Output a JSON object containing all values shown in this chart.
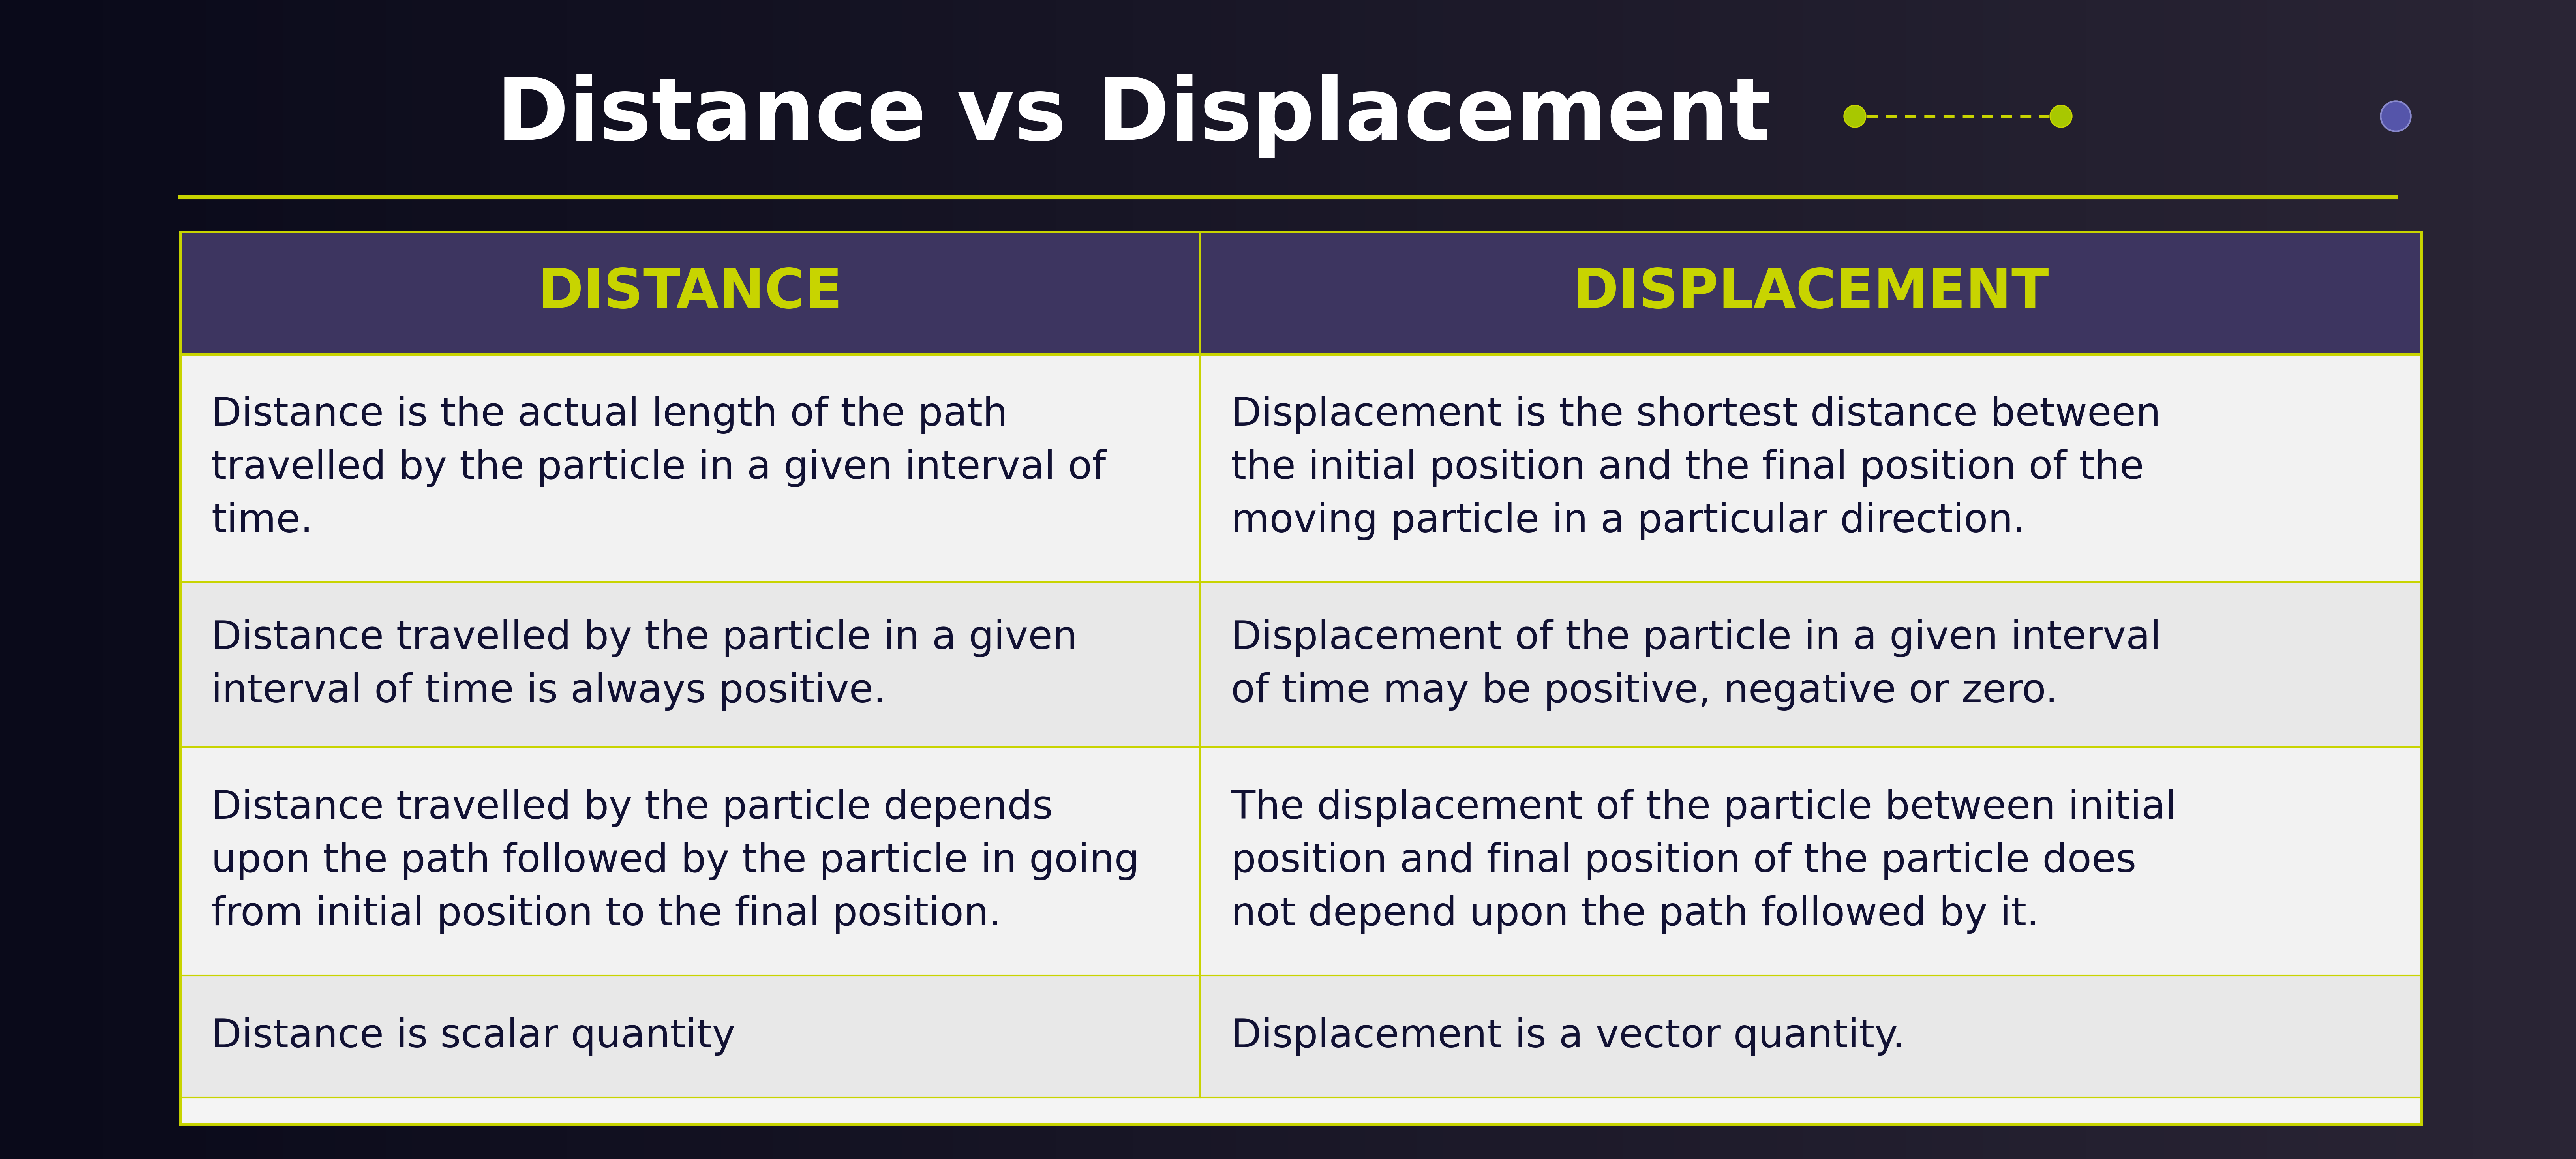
{
  "title": "Distance vs Displacement",
  "bg_color_left": "#0a0a1a",
  "bg_color_right": "#2a2535",
  "header_bg": "#3d3560",
  "cell_bg_odd": "#f2f2f2",
  "cell_bg_even": "#e8e8e8",
  "header_text_color": "#c8d400",
  "title_color": "#ffffff",
  "cell_text_color": "#111133",
  "border_color": "#c8d400",
  "line_color": "#c8d400",
  "col1_header": "DISTANCE",
  "col2_header": "DISPLACEMENT",
  "rows": [
    [
      "Distance is the actual length of the path\ntravelled by the particle in a given interval of\ntime.",
      "Displacement is the shortest distance between\nthe initial position and the final position of the\nmoving particle in a particular direction."
    ],
    [
      "Distance travelled by the particle in a given\ninterval of time is always positive.",
      "Displacement of the particle in a given interval\nof time may be positive, negative or zero."
    ],
    [
      "Distance travelled by the particle depends\nupon the path followed by the particle in going\nfrom initial position to the final position.",
      "The displacement of the particle between initial\nposition and final position of the particle does\nnot depend upon the path followed by it."
    ],
    [
      "Distance is scalar quantity",
      "Displacement is a vector quantity."
    ]
  ]
}
